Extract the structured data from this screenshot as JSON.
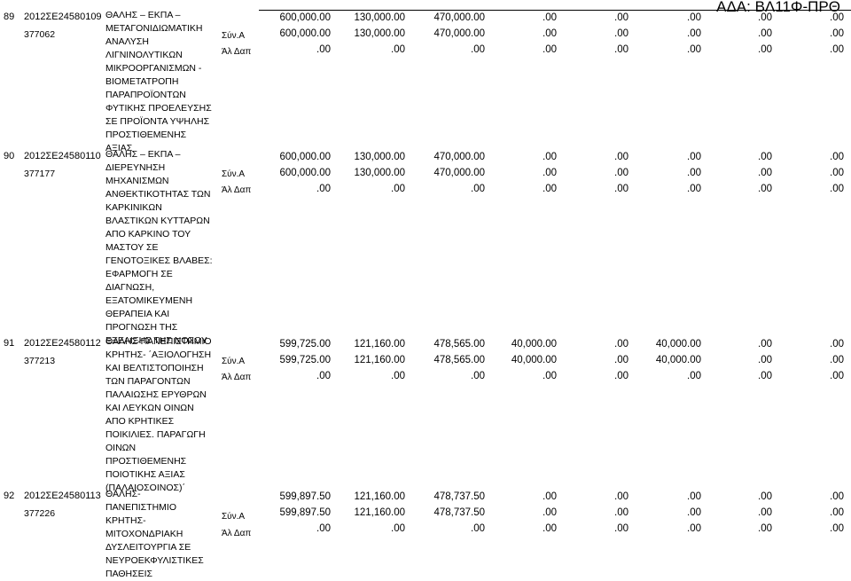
{
  "header": {
    "ada": "ΑΔΑ: ΒΛ11Φ-ΠΡΘ"
  },
  "records": [
    {
      "no": "89",
      "code": "2012ΣΕ24580109",
      "code2": "377062",
      "description": [
        "ΘΑΛΗΣ – ΕΚΠΑ –",
        "ΜΕΤΑΓΟΝΙΔΙΩΜΑΤΙΚΗ",
        "ΑΝΑΛΥΣΗ",
        "ΛΙΓΝΙΝΟΛΥΤΙΚΩΝ",
        "ΜΙΚΡΟΟΡΓΑΝΙΣΜΩΝ -",
        "ΒΙΟΜΕΤΑΤΡΟΠΗ",
        "ΠΑΡΑΠΡΟΪΟΝΤΩΝ",
        "ΦΥΤΙΚΗΣ ΠΡΟΕΛΕΥΣΗΣ",
        "ΣΕ ΠΡΟΪΟΝΤΑ ΥΨΗΛΗΣ",
        "ΠΡΟΣΤΙΘΕΜΕΝΗΣ",
        "ΑΞΙΑΣ"
      ],
      "rows": [
        {
          "label": "",
          "values": [
            "600,000.00",
            "130,000.00",
            "470,000.00",
            ".00",
            ".00",
            ".00",
            ".00",
            ".00"
          ]
        },
        {
          "label": "Σύν.Α",
          "values": [
            "600,000.00",
            "130,000.00",
            "470,000.00",
            ".00",
            ".00",
            ".00",
            ".00",
            ".00"
          ]
        },
        {
          "label": "Άλ Δαπ",
          "values": [
            ".00",
            ".00",
            ".00",
            ".00",
            ".00",
            ".00",
            ".00",
            ".00"
          ]
        }
      ]
    },
    {
      "no": "90",
      "code": "2012ΣΕ24580110",
      "code2": "377177",
      "description": [
        "ΘΑΛΗΣ – ΕΚΠΑ –",
        "ΔΙΕΡΕΥΝΗΣΗ",
        "ΜΗΧΑΝΙΣΜΩΝ",
        "ΑΝΘΕΚΤΙΚΟΤΗΤΑΣ ΤΩΝ",
        "ΚΑΡΚΙΝΙΚΩΝ",
        "ΒΛΑΣΤΙΚΩΝ ΚΥΤΤΑΡΩΝ",
        "ΑΠΟ ΚΑΡΚΙΝΟ ΤΟΥ",
        "ΜΑΣΤΟΥ ΣΕ",
        "ΓΕΝΟΤΟΞΙΚΕΣ ΒΛΑΒΕΣ:",
        "ΕΦΑΡΜΟΓΗ ΣΕ",
        "ΔΙΑΓΝΩΣΗ,",
        "ΕΞΑΤΟΜΙΚΕΥΜΕΝΗ",
        "ΘΕΡΑΠΕΙΑ ΚΑΙ",
        "ΠΡΟΓΝΩΣΗ ΤΗΣ",
        "ΕΞΕΛΙΞΗΣ ΤΗΣ ΝΟΣΟΥ"
      ],
      "rows": [
        {
          "label": "",
          "values": [
            "600,000.00",
            "130,000.00",
            "470,000.00",
            ".00",
            ".00",
            ".00",
            ".00",
            ".00"
          ]
        },
        {
          "label": "Σύν.Α",
          "values": [
            "600,000.00",
            "130,000.00",
            "470,000.00",
            ".00",
            ".00",
            ".00",
            ".00",
            ".00"
          ]
        },
        {
          "label": "Άλ Δαπ",
          "values": [
            ".00",
            ".00",
            ".00",
            ".00",
            ".00",
            ".00",
            ".00",
            ".00"
          ]
        }
      ]
    },
    {
      "no": "91",
      "code": "2012ΣΕ24580112",
      "code2": "377213",
      "description": [
        "ΘΑΛΗΣ-ΠΑΝΕΠΙΣΤΗΜΙΟ",
        "ΚΡΗΤΗΣ- ΄ΑΞΙΟΛΟΓΗΣΗ",
        "ΚΑΙ ΒΕΛΤΙΣΤΟΠΟΙΗΣΗ",
        "ΤΩΝ ΠΑΡΑΓΟΝΤΩΝ",
        "ΠΑΛΑΙΩΣΗΣ ΕΡΥΘΡΩΝ",
        "ΚΑΙ ΛΕΥΚΩΝ ΟΙΝΩΝ",
        "ΑΠΟ ΚΡΗΤΙΚΕΣ",
        "ΠΟΙΚΙΛΙΕΣ. ΠΑΡΑΓΩΓΗ",
        "ΟΙΝΩΝ",
        "ΠΡΟΣΤΙΘΕΜΕΝΗΣ",
        "ΠΟΙΟΤΙΚΗΣ ΑΞΙΑΣ",
        "(ΠΑΛΑΙΟΣΟΙΝΟΣ)΄"
      ],
      "rows": [
        {
          "label": "",
          "values": [
            "599,725.00",
            "121,160.00",
            "478,565.00",
            "40,000.00",
            ".00",
            "40,000.00",
            ".00",
            ".00"
          ]
        },
        {
          "label": "Σύν.Α",
          "values": [
            "599,725.00",
            "121,160.00",
            "478,565.00",
            "40,000.00",
            ".00",
            "40,000.00",
            ".00",
            ".00"
          ]
        },
        {
          "label": "Άλ Δαπ",
          "values": [
            ".00",
            ".00",
            ".00",
            ".00",
            ".00",
            ".00",
            ".00",
            ".00"
          ]
        }
      ]
    },
    {
      "no": "92",
      "code": "2012ΣΕ24580113",
      "code2": "377226",
      "description": [
        "ΘΑΛΗΣ-",
        "ΠΑΝΕΠΙΣΤΗΜΙΟ",
        "ΚΡΗΤΗΣ-",
        "ΜΙΤΟΧΟΝΔΡΙΑΚΗ",
        "ΔΥΣΛΕΙΤΟΥΡΓΙΑ ΣΕ",
        "ΝΕΥΡΟΕΚΦΥΛΙΣΤΙΚΕΣ",
        "ΠΑΘΗΣΕΙΣ"
      ],
      "rows": [
        {
          "label": "",
          "values": [
            "599,897.50",
            "121,160.00",
            "478,737.50",
            ".00",
            ".00",
            ".00",
            ".00",
            ".00"
          ]
        },
        {
          "label": "Σύν.Α",
          "values": [
            "599,897.50",
            "121,160.00",
            "478,737.50",
            ".00",
            ".00",
            ".00",
            ".00",
            ".00"
          ]
        },
        {
          "label": "Άλ Δαπ",
          "values": [
            ".00",
            ".00",
            ".00",
            ".00",
            ".00",
            ".00",
            ".00",
            ".00"
          ]
        }
      ]
    }
  ]
}
